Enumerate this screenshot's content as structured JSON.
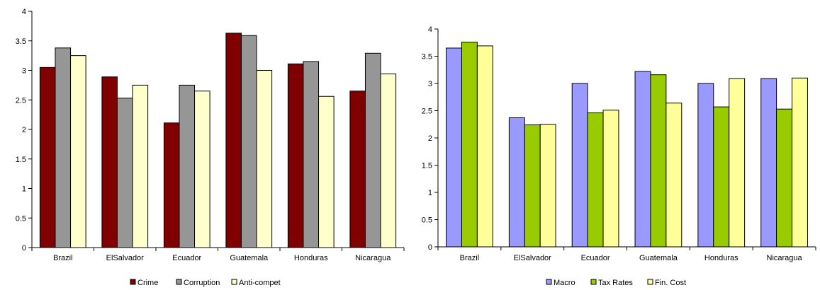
{
  "chart_data": [
    {
      "type": "bar",
      "categories": [
        "Brazil",
        "ElSalvador",
        "Ecuador",
        "Guatemala",
        "Honduras",
        "Nicaragua"
      ],
      "series": [
        {
          "name": "Crime",
          "values": [
            3.05,
            2.89,
            2.11,
            3.63,
            3.11,
            2.65
          ],
          "color": "#800000"
        },
        {
          "name": "Corruption",
          "values": [
            3.38,
            2.53,
            2.75,
            3.59,
            3.15,
            3.29
          ],
          "color": "#969696"
        },
        {
          "name": "Anti-compet",
          "values": [
            3.25,
            2.75,
            2.65,
            3.0,
            2.56,
            2.94
          ],
          "color": "#FFFFCC"
        }
      ],
      "yticks": [
        "0",
        "0.5",
        "1",
        "1.5",
        "2",
        "2.5",
        "3",
        "3.5",
        "4"
      ],
      "ylim": [
        0,
        4
      ],
      "grid": false,
      "legend": "bottom"
    },
    {
      "type": "bar",
      "categories": [
        "Brazil",
        "ElSalvador",
        "Ecuador",
        "Guatemala",
        "Honduras",
        "Nicaragua"
      ],
      "series": [
        {
          "name": "Macro",
          "values": [
            3.65,
            2.37,
            3.0,
            3.22,
            3.0,
            3.09
          ],
          "color": "#9999FF"
        },
        {
          "name": "Tax Rates",
          "values": [
            3.76,
            2.24,
            2.46,
            3.16,
            2.57,
            2.53
          ],
          "color": "#99CC00"
        },
        {
          "name": "Fin. Cost",
          "values": [
            3.69,
            2.25,
            2.51,
            2.64,
            3.09,
            3.1
          ],
          "color": "#FFFF99"
        }
      ],
      "yticks": [
        "0",
        "0.5",
        "1",
        "1.5",
        "2",
        "2.5",
        "3",
        "3.5",
        "4"
      ],
      "ylim": [
        0,
        4
      ],
      "grid": false,
      "legend": "bottom"
    }
  ]
}
